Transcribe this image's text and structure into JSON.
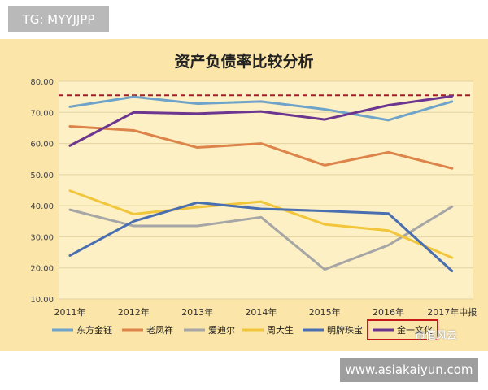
{
  "tag": "TG: MYYJJPP",
  "watermark_site": "www.asiakaiyun.com",
  "watermark_brand": "市值风云",
  "chart_data": {
    "type": "line",
    "title": "资产负债率比较分析",
    "categories": [
      "2011年",
      "2012年",
      "2013年",
      "2014年",
      "2015年",
      "2016年",
      "2017年中报"
    ],
    "ylim": [
      10,
      80
    ],
    "yticks": [
      "10.00",
      "20.00",
      "30.00",
      "40.00",
      "50.00",
      "60.00",
      "70.00",
      "80.00"
    ],
    "ytick_values": [
      10,
      20,
      30,
      40,
      50,
      60,
      70,
      80
    ],
    "grid": true,
    "legend_position": "bottom",
    "reference_line": {
      "value": 75.5,
      "color": "#a0202a",
      "style": "dashed"
    },
    "series": [
      {
        "name": "东方金钰",
        "color": "#6fa3c9",
        "values": [
          71.8,
          75.0,
          72.8,
          73.5,
          71.0,
          67.5,
          73.5
        ]
      },
      {
        "name": "老凤祥",
        "color": "#dc844a",
        "values": [
          65.5,
          64.2,
          58.7,
          60.0,
          53.0,
          57.2,
          52.0
        ]
      },
      {
        "name": "爱迪尔",
        "color": "#a6a6a6",
        "values": [
          38.7,
          33.5,
          33.5,
          36.3,
          19.5,
          27.3,
          39.7
        ]
      },
      {
        "name": "周大生",
        "color": "#f2c63a",
        "values": [
          44.8,
          37.3,
          39.5,
          41.3,
          34.0,
          32.0,
          23.3
        ]
      },
      {
        "name": "明牌珠宝",
        "color": "#4a6fb0",
        "values": [
          24.0,
          35.0,
          41.0,
          39.0,
          38.3,
          37.5,
          19.0
        ]
      },
      {
        "name": "金一文化",
        "color": "#6b3590",
        "values": [
          59.3,
          70.0,
          69.6,
          70.3,
          67.7,
          72.3,
          75.2
        ]
      }
    ]
  }
}
